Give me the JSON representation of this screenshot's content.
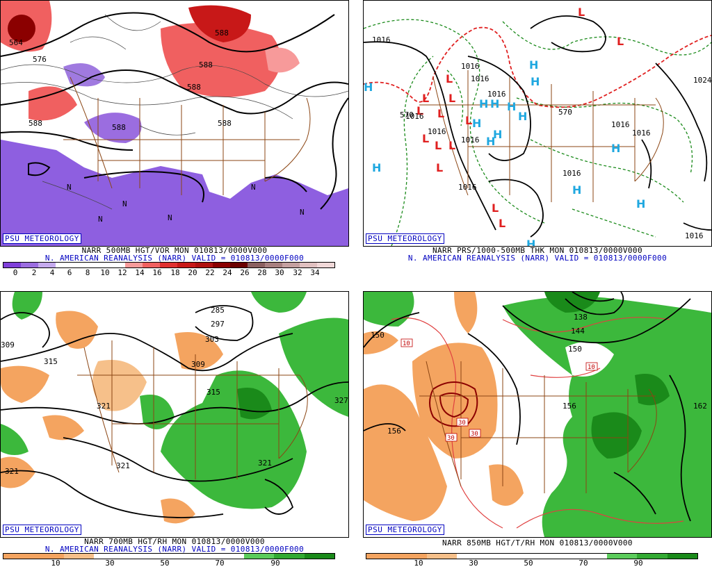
{
  "branding": "PSU METEOROLOGY",
  "reanalysis_line": "N. AMERICAN REANALYSIS (NARR) VALID = 010813/0000F000",
  "panels": {
    "tl": {
      "caption": "NARR 500MB HGT/VOR MON 010813/0000V000",
      "map_labels": [
        "564",
        "576",
        "588",
        "588",
        "588",
        "588",
        "588",
        "588",
        "N",
        "N",
        "N",
        "N",
        "N",
        "N"
      ],
      "legend": {
        "colors": [
          "#7f3fd9",
          "#9b6de0",
          "#c5aaee",
          "#ffffff",
          "#ffffff",
          "#ffffff",
          "#ffffff",
          "#f79a9a",
          "#f06060",
          "#e03030",
          "#c81818",
          "#b01010",
          "#8b0000",
          "#6b0000",
          "#8b6060",
          "#a88080",
          "#c4a0a0",
          "#e0c0c0",
          "#f0d8d8"
        ],
        "labels": [
          "0",
          "2",
          "4",
          "6",
          "8",
          "10",
          "12",
          "14",
          "16",
          "18",
          "20",
          "22",
          "24",
          "26",
          "28",
          "30",
          "32",
          "34"
        ]
      }
    },
    "tr": {
      "caption": "NARR PRS/1000-500MB THK MON 010813/0000V000",
      "map_labels": [
        "1016",
        "1016",
        "1016",
        "1016",
        "1016",
        "1016",
        "1016",
        "1016",
        "1016",
        "1016",
        "1016",
        "1016",
        "1024",
        "570",
        "570"
      ],
      "high_symbol": "H",
      "low_symbol": "L"
    },
    "bl": {
      "caption": "NARR 700MB HGT/RH MON 010813/0000V000",
      "map_labels": [
        "309",
        "315",
        "321",
        "321",
        "321",
        "321",
        "309",
        "315",
        "303",
        "297",
        "285",
        "327"
      ],
      "legend": {
        "colors": [
          "#f4a460",
          "#f4a460",
          "#f6c08a",
          "#ffffff",
          "#ffffff",
          "#ffffff",
          "#ffffff",
          "#ffffff",
          "#5ccc5c",
          "#33aa33",
          "#1a8a1a"
        ],
        "labels": [
          "10",
          "30",
          "50",
          "70",
          "90"
        ]
      }
    },
    "br": {
      "caption": "NARR 850MB HGT/T/RH MON 010813/0000V000",
      "map_labels": [
        "150",
        "156",
        "150",
        "156",
        "144",
        "138",
        "162",
        "10",
        "10",
        "30",
        "30",
        "30"
      ],
      "legend": {
        "colors": [
          "#f4a460",
          "#f4a460",
          "#f6c08a",
          "#ffffff",
          "#ffffff",
          "#ffffff",
          "#ffffff",
          "#ffffff",
          "#5ccc5c",
          "#33aa33",
          "#1a8a1a"
        ],
        "labels": [
          "10",
          "30",
          "50",
          "70",
          "90"
        ]
      }
    }
  }
}
